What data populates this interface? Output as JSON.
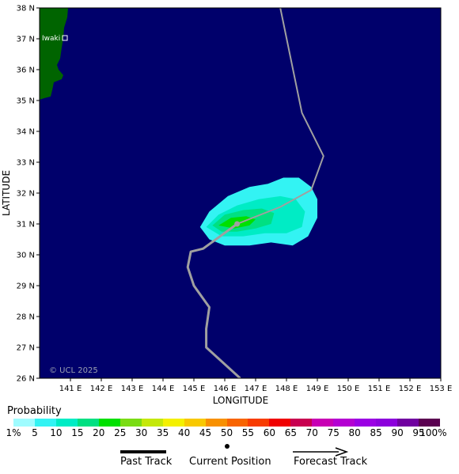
{
  "map": {
    "xlabel": "LONGITUDE",
    "ylabel": "LATITUDE",
    "copyright": "© UCL 2025",
    "city": "Iwaki",
    "lat_ticks": [
      "38 N",
      "37 N",
      "36 N",
      "35 N",
      "34 N",
      "33 N",
      "32 N",
      "31 N",
      "30 N",
      "29 N",
      "28 N",
      "27 N",
      "26 N"
    ],
    "lon_ticks": [
      "141 E",
      "142 E",
      "143 E",
      "144 E",
      "145 E",
      "146 E",
      "147 E",
      "148 E",
      "149 E",
      "150 E",
      "151 E",
      "152 E",
      "153 E"
    ],
    "extent": {
      "lon_min": 140,
      "lon_max": 153,
      "lat_min": 26,
      "lat_max": 38
    },
    "colors": {
      "ocean": "#00006b",
      "land": "#006400",
      "track": "#a0a0a0"
    },
    "past_track": [
      [
        146.5,
        26.0
      ],
      [
        145.4,
        27.0
      ],
      [
        145.4,
        27.6
      ],
      [
        145.5,
        28.3
      ],
      [
        145.0,
        29.0
      ],
      [
        144.8,
        29.6
      ],
      [
        144.9,
        30.1
      ],
      [
        145.3,
        30.2
      ],
      [
        146.4,
        31.0
      ]
    ],
    "forecast_track": [
      [
        146.4,
        31.0
      ],
      [
        147.8,
        31.55
      ],
      [
        148.8,
        32.1
      ],
      [
        149.2,
        33.2
      ],
      [
        148.5,
        34.6
      ],
      [
        147.8,
        38.0
      ]
    ],
    "current_position": [
      146.4,
      31.0
    ],
    "probability_swath": [
      {
        "level": 5,
        "polygon": [
          [
            145.2,
            30.9
          ],
          [
            145.5,
            31.4
          ],
          [
            146.1,
            31.9
          ],
          [
            146.8,
            32.2
          ],
          [
            147.4,
            32.3
          ],
          [
            147.9,
            32.5
          ],
          [
            148.4,
            32.5
          ],
          [
            148.8,
            32.2
          ],
          [
            149.0,
            31.8
          ],
          [
            149.0,
            31.2
          ],
          [
            148.7,
            30.6
          ],
          [
            148.2,
            30.3
          ],
          [
            147.5,
            30.4
          ],
          [
            146.8,
            30.3
          ],
          [
            146.0,
            30.3
          ],
          [
            145.5,
            30.5
          ]
        ]
      },
      {
        "level": 10,
        "polygon": [
          [
            145.4,
            30.9
          ],
          [
            145.8,
            31.3
          ],
          [
            146.4,
            31.6
          ],
          [
            147.1,
            31.8
          ],
          [
            147.8,
            31.9
          ],
          [
            148.3,
            31.8
          ],
          [
            148.6,
            31.4
          ],
          [
            148.5,
            30.9
          ],
          [
            148.0,
            30.7
          ],
          [
            147.3,
            30.7
          ],
          [
            146.6,
            30.6
          ],
          [
            145.9,
            30.6
          ]
        ]
      },
      {
        "level": 15,
        "polygon": [
          [
            145.6,
            30.95
          ],
          [
            146.0,
            31.3
          ],
          [
            146.6,
            31.45
          ],
          [
            147.2,
            31.5
          ],
          [
            147.6,
            31.35
          ],
          [
            147.5,
            31.0
          ],
          [
            147.0,
            30.85
          ],
          [
            146.4,
            30.75
          ],
          [
            145.9,
            30.75
          ]
        ]
      },
      {
        "level": 20,
        "polygon": [
          [
            145.8,
            30.95
          ],
          [
            146.2,
            31.2
          ],
          [
            146.7,
            31.25
          ],
          [
            147.0,
            31.15
          ],
          [
            146.8,
            30.95
          ],
          [
            146.3,
            30.85
          ]
        ]
      }
    ]
  },
  "legend": {
    "title": "Probability",
    "labels": [
      "1%",
      "5",
      "10",
      "15",
      "20",
      "25",
      "30",
      "35",
      "40",
      "45",
      "50",
      "55",
      "60",
      "65",
      "70",
      "75",
      "80",
      "85",
      "90",
      "95",
      "100%"
    ],
    "colors": [
      "#9ffcff",
      "#33f3f3",
      "#00ecc5",
      "#00e082",
      "#00e000",
      "#7adc14",
      "#c4e80a",
      "#f4f000",
      "#f8c800",
      "#f89000",
      "#f86400",
      "#f83c00",
      "#f00000",
      "#c80050",
      "#c800b4",
      "#b400d2",
      "#9b00e4",
      "#8c00dc",
      "#7000a0",
      "#5a0050"
    ]
  },
  "track_legend": {
    "past": "Past Track",
    "current": "Current Position",
    "forecast": "Forecast Track"
  }
}
